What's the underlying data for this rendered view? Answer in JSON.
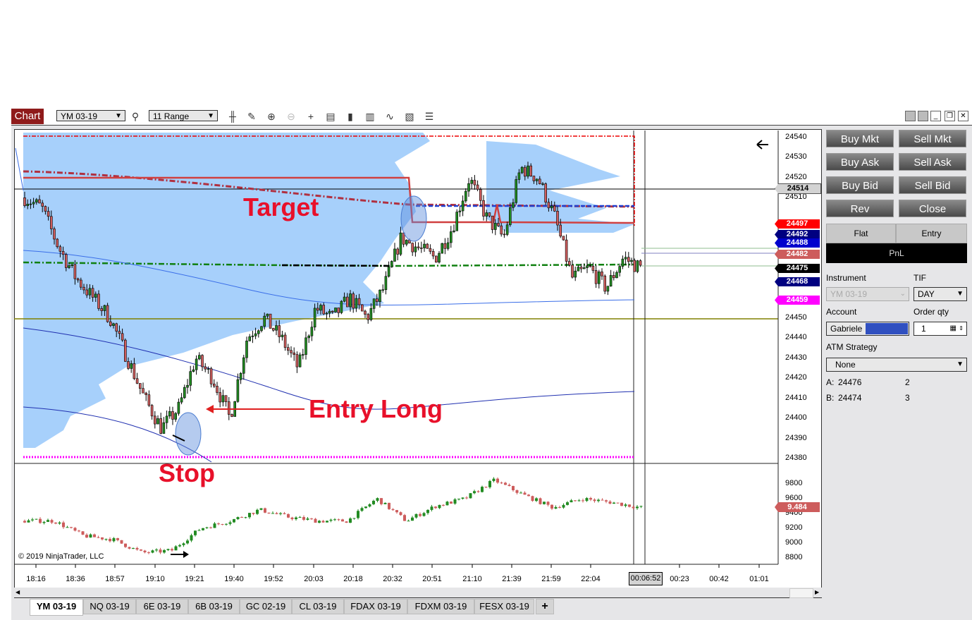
{
  "toolbar": {
    "chart_label": "Chart",
    "instrument": "YM 03-19",
    "bar_type": "11 Range",
    "icons": [
      "search-icon",
      "bar-type-icon",
      "drawing-tool-icon",
      "zoom-in-icon",
      "zoom-out-icon",
      "crosshair-icon",
      "data-box-icon",
      "chart-trader-icon",
      "indicators-icon",
      "strategies-icon",
      "templates-icon",
      "properties-icon"
    ]
  },
  "window_buttons": [
    "restore-icon",
    "tile-icon",
    "minimize-icon",
    "maximize-icon",
    "close-icon"
  ],
  "chart": {
    "copyright": "© 2019 NinjaTrader, LLC",
    "annotations": {
      "target": "Target",
      "entry": "Entry Long",
      "stop": "Stop"
    },
    "price_ticks": [
      "24540",
      "24530",
      "24520",
      "24510",
      "24450",
      "24440",
      "24430",
      "24420",
      "24410",
      "24400",
      "24390",
      "24380"
    ],
    "price_labels": [
      {
        "value": "24514",
        "color": "#d3d3d3",
        "text": "#000"
      },
      {
        "value": "24497",
        "color": "#ff0000",
        "text": "#fff"
      },
      {
        "value": "24492",
        "color": "#000080",
        "text": "#fff"
      },
      {
        "value": "24488",
        "color": "#0000cd",
        "text": "#fff"
      },
      {
        "value": "24482",
        "color": "#cd5c5c",
        "text": "#fff"
      },
      {
        "value": "24475",
        "color": "#000000",
        "text": "#fff"
      },
      {
        "value": "24468",
        "color": "#000080",
        "text": "#fff"
      },
      {
        "value": "24459",
        "color": "#ff00ff",
        "text": "#fff"
      }
    ],
    "indicator_ticks": [
      "9800",
      "9600",
      "9400",
      "9200",
      "9000",
      "8800"
    ],
    "indicator_label": "9.484",
    "time_ticks": [
      "18:16",
      "18:36",
      "18:57",
      "19:10",
      "19:21",
      "19:40",
      "19:52",
      "20:03",
      "20:18",
      "20:32",
      "20:51",
      "21:10",
      "21:39",
      "21:59",
      "22:04",
      "00:23",
      "00:42",
      "01:01"
    ],
    "time_cursor": "00:06:52"
  },
  "chart_data": {
    "type": "candlestick",
    "price_ylim": [
      24380,
      24540
    ],
    "price_path": [
      24510,
      24505,
      24485,
      24470,
      24460,
      24450,
      24430,
      24410,
      24395,
      24405,
      24430,
      24420,
      24400,
      24440,
      24450,
      24440,
      24425,
      24455,
      24450,
      24460,
      24450,
      24465,
      24490,
      24485,
      24480,
      24495,
      24520,
      24500,
      24490,
      24525,
      24520,
      24500,
      24470,
      24475,
      24465,
      24480,
      24475
    ],
    "indicator_ylim": [
      8700,
      9900
    ],
    "indicator_path": [
      9300,
      9300,
      9100,
      9050,
      8870,
      8900,
      9200,
      9300,
      9450,
      9350,
      9300,
      9300,
      9600,
      9300,
      9500,
      9600,
      9850,
      9650,
      9480,
      9600,
      9550,
      9480
    ],
    "colors": {
      "up": "#228b22",
      "down": "#cd5c5c",
      "profile": "#a7d0fb"
    }
  },
  "trader": {
    "buttons": [
      "Buy Mkt",
      "Sell Mkt",
      "Buy Ask",
      "Sell Ask",
      "Buy Bid",
      "Sell Bid",
      "Rev",
      "Close"
    ],
    "position": "Flat",
    "entry": "Entry",
    "pnl": "PnL",
    "instrument_label": "Instrument",
    "instrument": "YM 03-19",
    "tif_label": "TIF",
    "tif": "DAY",
    "account_label": "Account",
    "account": "Gabriele",
    "qty_label": "Order qty",
    "qty": "1",
    "atm_label": "ATM Strategy",
    "atm": "None",
    "ask_label": "A:",
    "ask": "24476",
    "ask_size": "2",
    "bid_label": "B:",
    "bid": "24474",
    "bid_size": "3"
  },
  "tabs": [
    "YM 03-19",
    "NQ 03-19",
    "6E 03-19",
    "6B 03-19",
    "GC 02-19",
    "CL 03-19",
    "FDAX 03-19",
    "FDXM 03-19",
    "FESX 03-19"
  ],
  "add_tab": "+"
}
